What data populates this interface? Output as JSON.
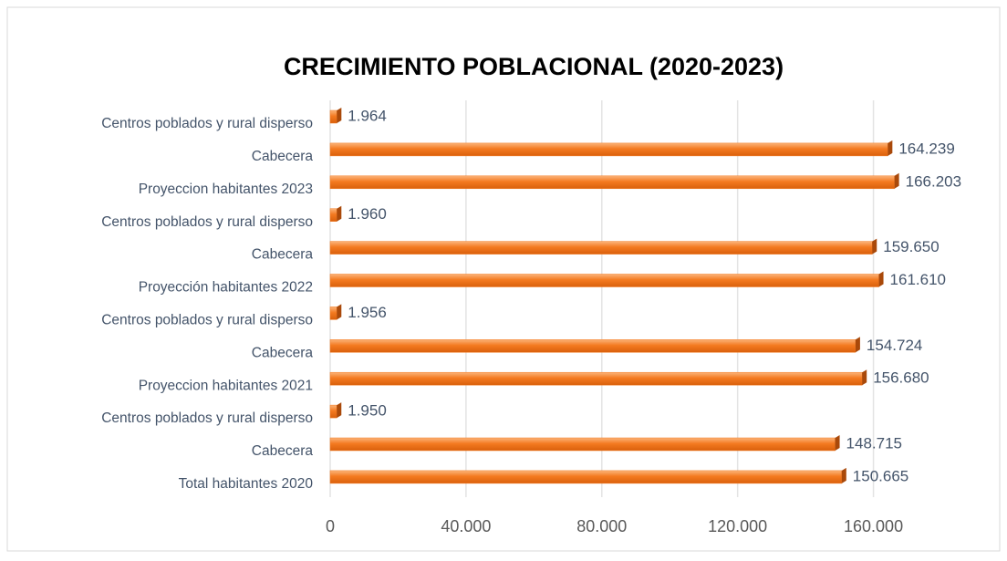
{
  "chart_data": {
    "type": "bar",
    "orientation": "horizontal",
    "title": "CRECIMIENTO POBLACIONAL (2020-2023)",
    "categories": [
      "Centros poblados y rural disperso",
      "Cabecera",
      "Proyeccion habitantes 2023",
      "Centros poblados y rural disperso",
      "Cabecera",
      "Proyección habitantes 2022",
      "Centros poblados y rural disperso",
      "Cabecera",
      "Proyeccion habitantes 2021",
      "Centros poblados y rural disperso",
      "Cabecera",
      "Total habitantes 2020"
    ],
    "values": [
      1964,
      164239,
      166203,
      1960,
      159650,
      161610,
      1956,
      154724,
      156680,
      1950,
      148715,
      150665
    ],
    "value_labels": [
      "1.964",
      "164.239",
      "166.203",
      "1.960",
      "159.650",
      "161.610",
      "1.956",
      "154.724",
      "156.680",
      "1.950",
      "148.715",
      "150.665"
    ],
    "color": "#f47a20",
    "xlim": [
      0,
      180000
    ],
    "xticks": [
      0,
      {
        "value": 40000,
        "label": "40.000"
      },
      {
        "value": 80000,
        "label": "80.000"
      },
      {
        "value": 120000,
        "label": "120.000"
      },
      {
        "value": 160000,
        "label": "160.000"
      }
    ],
    "grid": true
  }
}
